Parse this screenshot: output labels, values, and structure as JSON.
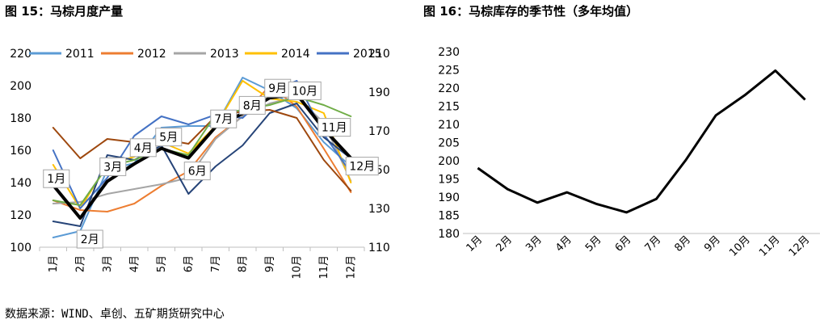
{
  "titles": {
    "fig15": "图 15：马棕月度产量",
    "fig16": "图 16：马棕库存的季节性（多年均值）"
  },
  "source": "数据来源：WIND、卓创、五矿期货研究中心",
  "chart_data": [
    {
      "type": "line",
      "title": "图 15：马棕月度产量",
      "categories": [
        "1月",
        "2月",
        "3月",
        "4月",
        "5月",
        "6月",
        "7月",
        "8月",
        "9月",
        "10月",
        "11月",
        "12月"
      ],
      "ylim": [
        100,
        220
      ],
      "yticks": [
        100,
        120,
        140,
        160,
        180,
        200,
        220
      ],
      "y2lim": [
        110,
        210
      ],
      "y2ticks": [
        110,
        130,
        150,
        170,
        190,
        210
      ],
      "legend": {
        "position": "top",
        "entries": [
          "2011",
          "2012",
          "2013",
          "2014",
          "2015"
        ]
      },
      "series": [
        {
          "name": "2011",
          "color": "#5b9bd5",
          "axis": "left",
          "width": 2,
          "values": [
            106,
            110,
            148,
            152,
            174,
            175,
            175,
            205,
            197,
            186,
            165,
            150
          ]
        },
        {
          "name": "2012",
          "color": "#ed7d31",
          "axis": "left",
          "width": 2,
          "values": [
            129,
            123,
            122,
            127,
            138,
            147,
            168,
            181,
            200,
            187,
            161,
            134
          ]
        },
        {
          "name": "2013",
          "color": "#a5a5a5",
          "axis": "left",
          "width": 2,
          "values": [
            127,
            128,
            133,
            136,
            139,
            143,
            167,
            181,
            189,
            193,
            177,
            141
          ]
        },
        {
          "name": "2014",
          "color": "#ffc000",
          "axis": "left",
          "width": 2,
          "values": [
            151,
            124,
            151,
            156,
            165,
            158,
            175,
            203,
            192,
            190,
            183,
            140
          ]
        },
        {
          "name": "2015",
          "color": "#4472c4",
          "axis": "left",
          "width": 2,
          "values": [
            160,
            124,
            143,
            169,
            181,
            176,
            182,
            180,
            196,
            203,
            170,
            146
          ]
        },
        {
          "color": "#264478",
          "axis": "left",
          "width": 2,
          "values": [
            116,
            113,
            157,
            154,
            163,
            133,
            150,
            163,
            183,
            189,
            168,
            155
          ]
        },
        {
          "color": "#9e480e",
          "axis": "left",
          "width": 2,
          "values": [
            174,
            155,
            167,
            165,
            167,
            164,
            181,
            184,
            185,
            180,
            154,
            135
          ]
        },
        {
          "color": "#70ad47",
          "axis": "left",
          "width": 2,
          "values": [
            129,
            126,
            150,
            154,
            161,
            157,
            182,
            185,
            188,
            193,
            188,
            181
          ]
        },
        {
          "color": "#000000",
          "axis": "right",
          "width": 4,
          "values": [
            142,
            125,
            144,
            153,
            161,
            156,
            172,
            179,
            187,
            189,
            171,
            156
          ]
        }
      ],
      "callouts": [
        {
          "cat": 0,
          "label": "1月"
        },
        {
          "cat": 1,
          "label": "2月"
        },
        {
          "cat": 2,
          "label": "3月"
        },
        {
          "cat": 3,
          "label": "4月"
        },
        {
          "cat": 4,
          "label": "5月"
        },
        {
          "cat": 5,
          "label": "6月"
        },
        {
          "cat": 6,
          "label": "7月"
        },
        {
          "cat": 7,
          "label": "8月"
        },
        {
          "cat": 8,
          "label": "9月"
        },
        {
          "cat": 9,
          "label": "10月"
        },
        {
          "cat": 10,
          "label": "11月"
        },
        {
          "cat": 11,
          "label": "12月"
        }
      ]
    },
    {
      "type": "line",
      "title": "图 16：马棕库存的季节性（多年均值）",
      "categories": [
        "1月",
        "2月",
        "3月",
        "4月",
        "5月",
        "6月",
        "7月",
        "8月",
        "9月",
        "10月",
        "11月",
        "12月"
      ],
      "ylim": [
        180,
        230
      ],
      "yticks": [
        180,
        185,
        190,
        195,
        200,
        205,
        210,
        215,
        220,
        225,
        230
      ],
      "series": [
        {
          "color": "#000000",
          "width": 3,
          "values": [
            198,
            192.2,
            188.5,
            191.3,
            188.1,
            185.8,
            189.5,
            200.3,
            212.5,
            218.2,
            224.8,
            216.8
          ]
        }
      ]
    }
  ]
}
